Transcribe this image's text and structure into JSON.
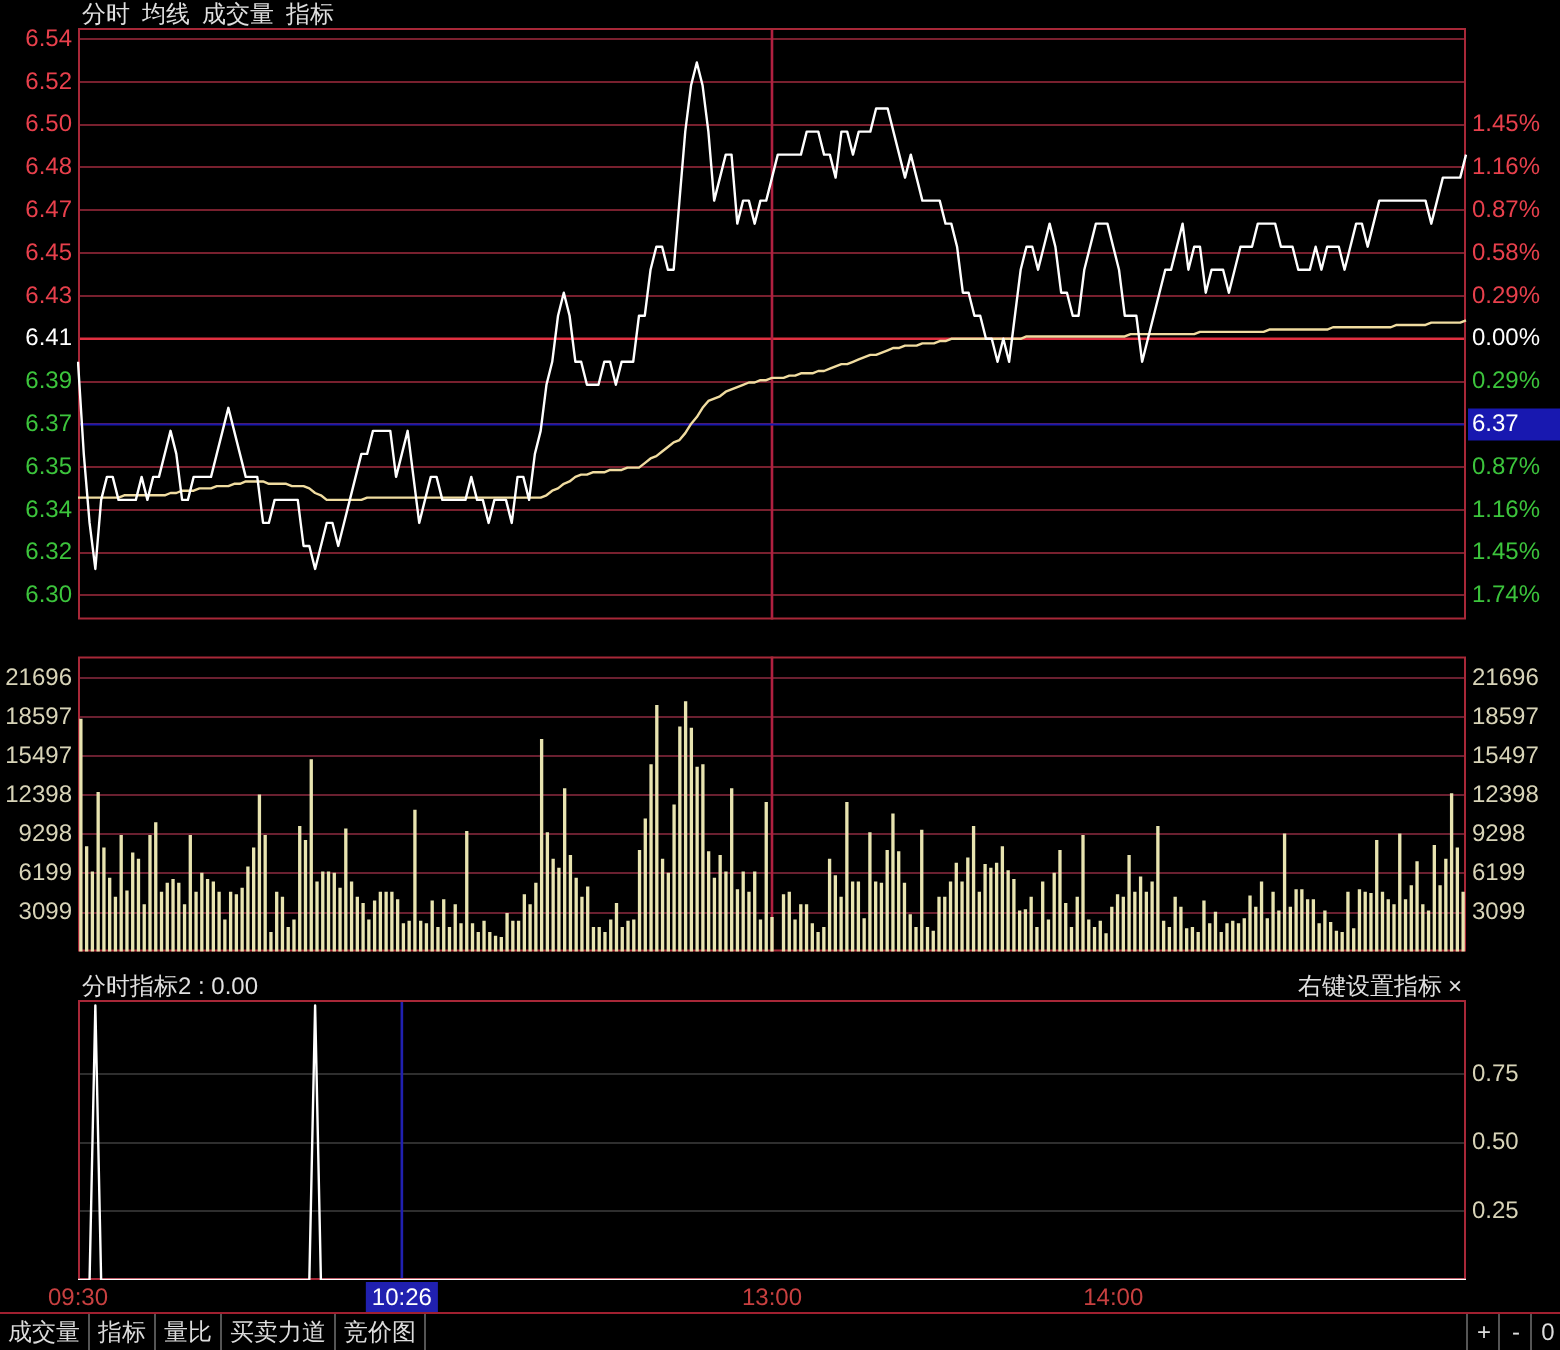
{
  "chart_data": [
    {
      "type": "line",
      "annotations": [
        "分时",
        "均线",
        "成交量",
        "指标"
      ],
      "categories": [
        "09:30",
        null,
        null,
        null,
        null,
        null,
        null,
        null,
        null,
        null,
        null,
        null,
        null,
        null,
        null,
        null,
        null,
        null,
        null,
        null,
        null,
        null,
        null,
        null,
        null,
        null,
        null,
        null,
        null,
        null,
        null,
        null,
        null,
        null,
        null,
        null,
        null,
        null,
        null,
        null,
        null,
        null,
        null,
        null,
        null,
        null,
        null,
        null,
        null,
        null,
        null,
        null,
        null,
        null,
        null,
        null,
        "10:26",
        null,
        null,
        null,
        null,
        null,
        null,
        null,
        null,
        null,
        null,
        null,
        null,
        null,
        null,
        null,
        null,
        null,
        null,
        null,
        null,
        null,
        null,
        null,
        null,
        null,
        null,
        null,
        null,
        null,
        null,
        null,
        null,
        null,
        null,
        null,
        null,
        null,
        null,
        null,
        null,
        null,
        null,
        null,
        null,
        null,
        null,
        null,
        null,
        null,
        null,
        null,
        null,
        null,
        null,
        null,
        null,
        null,
        null,
        null,
        null,
        null,
        null,
        null,
        "13:00",
        null,
        null,
        null,
        null,
        null,
        null,
        null,
        null,
        null,
        null,
        null,
        null,
        null,
        null,
        null,
        null,
        null,
        null,
        null,
        null,
        null,
        null,
        null,
        null,
        null,
        null,
        null,
        null,
        null,
        null,
        null,
        null,
        null,
        null,
        null,
        null,
        null,
        null,
        null,
        null,
        null,
        null,
        null,
        null,
        null,
        null,
        null,
        null,
        null,
        null,
        null,
        null,
        null,
        null,
        null,
        null,
        null,
        null,
        "14:00",
        null,
        null,
        null,
        null,
        null,
        null,
        null,
        null,
        null,
        null,
        null,
        null,
        null,
        null,
        null,
        null,
        null,
        null,
        null,
        null,
        null,
        null,
        null,
        null,
        null,
        null,
        null,
        null,
        null,
        null,
        null,
        null,
        null,
        null,
        null,
        null,
        null,
        null,
        null,
        null,
        null,
        null,
        null,
        null,
        null,
        null,
        null,
        null,
        null,
        null,
        null,
        null,
        null,
        null,
        null,
        null,
        null,
        null,
        null,
        null,
        null
      ],
      "ylim": [
        6.288,
        6.545
      ],
      "yticks": [
        {
          "value": 6.5401,
          "label": "6.54"
        },
        {
          "value": 6.5215,
          "label": "6.52"
        },
        {
          "value": 6.503,
          "label": "6.50"
        },
        {
          "value": 6.4844,
          "label": "6.48"
        },
        {
          "value": 6.4658,
          "label": "6.47"
        },
        {
          "value": 6.4472,
          "label": "6.45"
        },
        {
          "value": 6.4286,
          "label": "6.43"
        },
        {
          "value": 6.41,
          "label": "6.41"
        },
        {
          "value": 6.3914,
          "label": "6.39"
        },
        {
          "value": 6.3728,
          "label": "6.37"
        },
        {
          "value": 6.3542,
          "label": "6.35"
        },
        {
          "value": 6.3356,
          "label": "6.34"
        },
        {
          "value": 6.317,
          "label": "6.32"
        },
        {
          "value": 6.2985,
          "label": "6.30"
        }
      ],
      "y2lim": [
        -1.903,
        2.106
      ],
      "y2ticks": [
        {
          "value": 1.45,
          "label": "1.45%"
        },
        {
          "value": 1.16,
          "label": "1.16%"
        },
        {
          "value": 0.87,
          "label": "0.87%"
        },
        {
          "value": 0.58,
          "label": "0.58%"
        },
        {
          "value": 0.29,
          "label": "0.29%"
        },
        {
          "value": 0,
          "label": "0.00%"
        },
        {
          "value": -0.29,
          "label": "0.29%"
        },
        {
          "value": -0.87,
          "label": "0.87%"
        },
        {
          "value": -1.16,
          "label": "1.16%"
        },
        {
          "value": -1.45,
          "label": "1.45%"
        },
        {
          "value": -1.74,
          "label": "1.74%"
        }
      ],
      "tick_labels": "y",
      "grid": "y",
      "legend": false,
      "marker": "none",
      "ref_lines": [
        {
          "axis": "y",
          "value": 6.41,
          "color": "#e03040"
        },
        {
          "axis": "x",
          "value": "13:00",
          "color": "#b02040"
        },
        {
          "axis": "y",
          "value": 6.3728,
          "label": "6.37",
          "color": "#1818b0"
        }
      ],
      "series": [
        {
          "color": "#ffffff",
          "values": [
            6.4,
            6.36,
            6.33,
            6.31,
            6.34,
            6.35,
            6.35,
            6.34,
            6.34,
            6.34,
            6.34,
            6.35,
            6.34,
            6.35,
            6.35,
            6.36,
            6.37,
            6.36,
            6.34,
            6.34,
            6.35,
            6.35,
            6.35,
            6.35,
            6.36,
            6.37,
            6.38,
            6.37,
            6.36,
            6.35,
            6.35,
            6.35,
            6.33,
            6.33,
            6.34,
            6.34,
            6.34,
            6.34,
            6.34,
            6.32,
            6.32,
            6.31,
            6.32,
            6.33,
            6.33,
            6.32,
            6.33,
            6.34,
            6.35,
            6.36,
            6.36,
            6.37,
            6.37,
            6.37,
            6.37,
            6.35,
            6.36,
            6.37,
            6.35,
            6.33,
            6.34,
            6.35,
            6.35,
            6.34,
            6.34,
            6.34,
            6.34,
            6.34,
            6.35,
            6.34,
            6.34,
            6.33,
            6.34,
            6.34,
            6.34,
            6.33,
            6.35,
            6.35,
            6.34,
            6.36,
            6.37,
            6.39,
            6.4,
            6.42,
            6.43,
            6.42,
            6.4,
            6.4,
            6.39,
            6.39,
            6.39,
            6.4,
            6.4,
            6.39,
            6.4,
            6.4,
            6.4,
            6.42,
            6.42,
            6.44,
            6.45,
            6.45,
            6.44,
            6.44,
            6.47,
            6.5,
            6.52,
            6.53,
            6.52,
            6.5,
            6.47,
            6.48,
            6.49,
            6.49,
            6.46,
            6.47,
            6.47,
            6.46,
            6.47,
            6.47,
            6.48,
            6.49,
            6.49,
            6.49,
            6.49,
            6.49,
            6.5,
            6.5,
            6.5,
            6.49,
            6.49,
            6.48,
            6.5,
            6.5,
            6.49,
            6.5,
            6.5,
            6.5,
            6.51,
            6.51,
            6.51,
            6.5,
            6.49,
            6.48,
            6.49,
            6.48,
            6.47,
            6.47,
            6.47,
            6.47,
            6.46,
            6.46,
            6.45,
            6.43,
            6.43,
            6.42,
            6.42,
            6.41,
            6.41,
            6.4,
            6.41,
            6.4,
            6.42,
            6.44,
            6.45,
            6.45,
            6.44,
            6.45,
            6.46,
            6.45,
            6.43,
            6.43,
            6.42,
            6.42,
            6.44,
            6.45,
            6.46,
            6.46,
            6.46,
            6.45,
            6.44,
            6.42,
            6.42,
            6.42,
            6.4,
            6.41,
            6.42,
            6.43,
            6.44,
            6.44,
            6.45,
            6.46,
            6.44,
            6.45,
            6.45,
            6.43,
            6.44,
            6.44,
            6.44,
            6.43,
            6.44,
            6.45,
            6.45,
            6.45,
            6.46,
            6.46,
            6.46,
            6.46,
            6.45,
            6.45,
            6.45,
            6.44,
            6.44,
            6.44,
            6.45,
            6.44,
            6.45,
            6.45,
            6.45,
            6.44,
            6.45,
            6.46,
            6.46,
            6.45,
            6.46,
            6.47,
            6.47,
            6.47,
            6.47,
            6.47,
            6.47,
            6.47,
            6.47,
            6.47,
            6.46,
            6.47,
            6.48,
            6.48,
            6.48,
            6.48,
            6.49
          ]
        },
        {
          "color": "#f0dca0",
          "values": [
            6.341,
            6.341,
            6.341,
            6.341,
            6.341,
            6.341,
            6.341,
            6.341,
            6.342,
            6.342,
            6.342,
            6.342,
            6.342,
            6.342,
            6.342,
            6.342,
            6.343,
            6.343,
            6.344,
            6.344,
            6.344,
            6.345,
            6.345,
            6.345,
            6.346,
            6.346,
            6.346,
            6.347,
            6.347,
            6.348,
            6.348,
            6.348,
            6.348,
            6.347,
            6.347,
            6.347,
            6.347,
            6.346,
            6.346,
            6.346,
            6.345,
            6.343,
            6.342,
            6.34,
            6.34,
            6.34,
            6.34,
            6.34,
            6.34,
            6.34,
            6.341,
            6.341,
            6.341,
            6.341,
            6.341,
            6.341,
            6.341,
            6.341,
            6.341,
            6.341,
            6.341,
            6.341,
            6.341,
            6.341,
            6.341,
            6.341,
            6.341,
            6.341,
            6.341,
            6.341,
            6.341,
            6.341,
            6.341,
            6.341,
            6.341,
            6.341,
            6.341,
            6.341,
            6.341,
            6.341,
            6.341,
            6.342,
            6.344,
            6.345,
            6.347,
            6.348,
            6.35,
            6.351,
            6.351,
            6.352,
            6.352,
            6.352,
            6.353,
            6.353,
            6.353,
            6.354,
            6.354,
            6.354,
            6.356,
            6.358,
            6.359,
            6.361,
            6.363,
            6.365,
            6.366,
            6.369,
            6.373,
            6.376,
            6.38,
            6.383,
            6.384,
            6.385,
            6.387,
            6.388,
            6.389,
            6.39,
            6.391,
            6.391,
            6.392,
            6.392,
            6.393,
            6.393,
            6.393,
            6.394,
            6.394,
            6.395,
            6.395,
            6.395,
            6.396,
            6.396,
            6.397,
            6.398,
            6.399,
            6.399,
            6.4,
            6.401,
            6.402,
            6.403,
            6.403,
            6.404,
            6.405,
            6.406,
            6.406,
            6.407,
            6.407,
            6.407,
            6.408,
            6.408,
            6.408,
            6.409,
            6.409,
            6.41,
            6.41,
            6.41,
            6.41,
            6.41,
            6.41,
            6.41,
            6.41,
            6.41,
            6.41,
            6.41,
            6.41,
            6.41,
            6.411,
            6.411,
            6.411,
            6.411,
            6.411,
            6.411,
            6.411,
            6.411,
            6.411,
            6.411,
            6.411,
            6.411,
            6.411,
            6.411,
            6.411,
            6.411,
            6.411,
            6.411,
            6.412,
            6.412,
            6.412,
            6.412,
            6.412,
            6.412,
            6.412,
            6.412,
            6.412,
            6.412,
            6.412,
            6.412,
            6.413,
            6.413,
            6.413,
            6.413,
            6.413,
            6.413,
            6.413,
            6.413,
            6.413,
            6.413,
            6.413,
            6.413,
            6.414,
            6.414,
            6.414,
            6.414,
            6.414,
            6.414,
            6.414,
            6.414,
            6.414,
            6.414,
            6.414,
            6.415,
            6.415,
            6.415,
            6.415,
            6.415,
            6.415,
            6.415,
            6.415,
            6.415,
            6.415,
            6.415,
            6.416,
            6.416,
            6.416,
            6.416,
            6.416,
            6.416,
            6.417,
            6.417,
            6.417,
            6.417,
            6.417,
            6.417,
            6.418
          ]
        }
      ]
    },
    {
      "type": "bar",
      "categories": [
        "09:30",
        null,
        null,
        null,
        null,
        null,
        null,
        null,
        null,
        null,
        null,
        null,
        null,
        null,
        null,
        null,
        null,
        null,
        null,
        null,
        null,
        null,
        null,
        null,
        null,
        null,
        null,
        null,
        null,
        null,
        null,
        null,
        null,
        null,
        null,
        null,
        null,
        null,
        null,
        null,
        null,
        null,
        null,
        null,
        null,
        null,
        null,
        null,
        null,
        null,
        null,
        null,
        null,
        null,
        null,
        null,
        "10:26",
        null,
        null,
        null,
        null,
        null,
        null,
        null,
        null,
        null,
        null,
        null,
        null,
        null,
        null,
        null,
        null,
        null,
        null,
        null,
        null,
        null,
        null,
        null,
        null,
        null,
        null,
        null,
        null,
        null,
        null,
        null,
        null,
        null,
        null,
        null,
        null,
        null,
        null,
        null,
        null,
        null,
        null,
        null,
        null,
        null,
        null,
        null,
        null,
        null,
        null,
        null,
        null,
        null,
        null,
        null,
        null,
        null,
        null,
        null,
        null,
        null,
        null,
        null,
        "13:00",
        null,
        null,
        null,
        null,
        null,
        null,
        null,
        null,
        null,
        null,
        null,
        null,
        null,
        null,
        null,
        null,
        null,
        null,
        null,
        null,
        null,
        null,
        null,
        null,
        null,
        null,
        null,
        null,
        null,
        null,
        null,
        null,
        null,
        null,
        null,
        null,
        null,
        null,
        null,
        null,
        null,
        null,
        null,
        null,
        null,
        null,
        null,
        null,
        null,
        null,
        null,
        null,
        null,
        null,
        null,
        null,
        null,
        null,
        "14:00",
        null,
        null,
        null,
        null,
        null,
        null,
        null,
        null,
        null,
        null,
        null,
        null,
        null,
        null,
        null,
        null,
        null,
        null,
        null,
        null,
        null,
        null,
        null,
        null,
        null,
        null,
        null,
        null,
        null,
        null,
        null,
        null,
        null,
        null,
        null,
        null,
        null,
        null,
        null,
        null,
        null,
        null,
        null,
        null,
        null,
        null,
        null,
        null,
        null,
        null,
        null,
        null,
        null,
        null,
        null,
        null,
        null,
        null,
        null,
        null,
        null
      ],
      "ylim": [
        0,
        23400
      ],
      "yticks": [
        3099,
        6199,
        9298,
        12398,
        15497,
        18597,
        21696
      ],
      "y2lim": [
        0,
        23400
      ],
      "y2ticks": [
        3099,
        6199,
        9298,
        12398,
        15497,
        18597,
        21696
      ],
      "tick_labels": "y",
      "grid": "y",
      "legend": false,
      "ref_lines": [
        {
          "axis": "x",
          "value": "13:00",
          "color": "#b02040"
        }
      ],
      "series": [
        {
          "color": "#e8e4b0",
          "values": [
            18400,
            8300,
            6300,
            12600,
            8200,
            5800,
            4300,
            9200,
            4800,
            7800,
            7300,
            3700,
            9200,
            10200,
            4700,
            5400,
            5700,
            5400,
            3700,
            9200,
            4700,
            6200,
            5700,
            5500,
            4700,
            2500,
            4700,
            4500,
            5000,
            6700,
            8200,
            12400,
            9200,
            1500,
            4700,
            4300,
            1900,
            2500,
            9900,
            8800,
            15200,
            5500,
            6300,
            6300,
            6200,
            5000,
            9700,
            5500,
            4300,
            3800,
            2500,
            4000,
            4700,
            4700,
            4700,
            4100,
            2200,
            2400,
            11200,
            2400,
            2200,
            4000,
            1900,
            4100,
            1900,
            3700,
            2200,
            9500,
            2200,
            1500,
            2400,
            1500,
            1200,
            1100,
            3000,
            2400,
            2400,
            4500,
            3700,
            5400,
            16800,
            9400,
            7300,
            6600,
            12900,
            7600,
            5800,
            4300,
            5100,
            1900,
            1900,
            1500,
            2500,
            3800,
            1900,
            2400,
            2500,
            8000,
            10500,
            14800,
            19500,
            7300,
            6200,
            11600,
            17800,
            19800,
            17700,
            14600,
            14800,
            7900,
            5800,
            7600,
            6300,
            12900,
            4900,
            6300,
            4700,
            6300,
            2500,
            11800,
            2700,
            null,
            4500,
            4700,
            2500,
            3700,
            3700,
            2200,
            1500,
            1900,
            7300,
            6000,
            4300,
            11800,
            5500,
            5500,
            2600,
            9400,
            5500,
            5400,
            8000,
            10900,
            7900,
            5400,
            2900,
            1900,
            9600,
            1900,
            1600,
            4300,
            4300,
            5500,
            7000,
            5500,
            7400,
            9900,
            4700,
            6900,
            6600,
            7000,
            8300,
            6400,
            5700,
            3200,
            3300,
            4300,
            1900,
            5500,
            2500,
            6200,
            8000,
            3800,
            1900,
            4300,
            9200,
            2500,
            1900,
            2400,
            1400,
            3500,
            4500,
            4300,
            7600,
            4700,
            5900,
            4700,
            5500,
            9900,
            2400,
            1900,
            4300,
            3500,
            1800,
            1900,
            1500,
            4000,
            2200,
            3100,
            1500,
            2200,
            2400,
            2200,
            2600,
            4400,
            3500,
            5500,
            2600,
            4700,
            3200,
            9300,
            3500,
            4900,
            4900,
            4100,
            4100,
            2200,
            3200,
            2300,
            1600,
            1500,
            4700,
            1800,
            4900,
            4700,
            4600,
            8800,
            4700,
            4100,
            3700,
            9300,
            4100,
            5200,
            7100,
            3700,
            3200,
            8400,
            5200,
            7300,
            12500,
            8200,
            4700
          ]
        }
      ]
    },
    {
      "type": "line",
      "title": "分时指标2 : 0.00",
      "annotations": [
        "右键设置指标",
        "×",
        "成交量",
        "指标",
        "量比",
        "买卖力道",
        "竞价图",
        "+",
        "-",
        "0"
      ],
      "categories": [
        "09:30",
        null,
        null,
        null,
        null,
        null,
        null,
        null,
        null,
        null,
        null,
        null,
        null,
        null,
        null,
        null,
        null,
        null,
        null,
        null,
        null,
        null,
        null,
        null,
        null,
        null,
        null,
        null,
        null,
        null,
        null,
        null,
        null,
        null,
        null,
        null,
        null,
        null,
        null,
        null,
        null,
        null,
        null,
        null,
        null,
        null,
        null,
        null,
        null,
        null,
        null,
        null,
        null,
        null,
        null,
        null,
        "10:26",
        null,
        null,
        null,
        null,
        null,
        null,
        null,
        null,
        null,
        null,
        null,
        null,
        null,
        null,
        null,
        null,
        null,
        null,
        null,
        null,
        null,
        null,
        null,
        null,
        null,
        null,
        null,
        null,
        null,
        null,
        null,
        null,
        null,
        null,
        null,
        null,
        null,
        null,
        null,
        null,
        null,
        null,
        null,
        null,
        null,
        null,
        null,
        null,
        null,
        null,
        null,
        null,
        null,
        null,
        null,
        null,
        null,
        null,
        null,
        null,
        null,
        null,
        null,
        "13:00",
        null,
        null,
        null,
        null,
        null,
        null,
        null,
        null,
        null,
        null,
        null,
        null,
        null,
        null,
        null,
        null,
        null,
        null,
        null,
        null,
        null,
        null,
        null,
        null,
        null,
        null,
        null,
        null,
        null,
        null,
        null,
        null,
        null,
        null,
        null,
        null,
        null,
        null,
        null,
        null,
        null,
        null,
        null,
        null,
        null,
        null,
        null,
        null,
        null,
        null,
        null,
        null,
        null,
        null,
        null,
        null,
        null,
        null,
        "14:00",
        null,
        null,
        null,
        null,
        null,
        null,
        null,
        null,
        null,
        null,
        null,
        null,
        null,
        null,
        null,
        null,
        null,
        null,
        null,
        null,
        null,
        null,
        null,
        null,
        null,
        null,
        null,
        null,
        null,
        null,
        null,
        null,
        null,
        null,
        null,
        null,
        null,
        null,
        null,
        null,
        null,
        null,
        null,
        null,
        null,
        null,
        null,
        null,
        null,
        null,
        null,
        null,
        null,
        null,
        null,
        null,
        null,
        null,
        null,
        null,
        null
      ],
      "y2lim": [
        0,
        1.02
      ],
      "y2ticks": [
        0.25,
        {
          "value": 0.5,
          "label": "0.50"
        },
        0.75
      ],
      "grid": "y",
      "legend": false,
      "marker": "none",
      "ref_lines": [
        {
          "axis": "x",
          "value": "10:26",
          "color": "#2020b0"
        }
      ],
      "series": [
        {
          "color": "#ffffff",
          "axis": "y2",
          "values": [
            0,
            0,
            0,
            1,
            0,
            0,
            0,
            0,
            0,
            0,
            0,
            0,
            0,
            0,
            0,
            0,
            0,
            0,
            0,
            0,
            0,
            0,
            0,
            0,
            0,
            0,
            0,
            0,
            0,
            0,
            0,
            0,
            0,
            0,
            0,
            0,
            0,
            0,
            0,
            0,
            0,
            1,
            0,
            0,
            0,
            0,
            0,
            0,
            0,
            0,
            0,
            0,
            0,
            0,
            0,
            0,
            0,
            0,
            0,
            0,
            0,
            0,
            0,
            0,
            0,
            0,
            0,
            0,
            0,
            0,
            0,
            0,
            0,
            0,
            0,
            0,
            0,
            0,
            0,
            0,
            0,
            0,
            0,
            0,
            0,
            0,
            0,
            0,
            0,
            0,
            0,
            0,
            0,
            0,
            0,
            0,
            0,
            0,
            0,
            0,
            0,
            0,
            0,
            0,
            0,
            0,
            0,
            0,
            0,
            0,
            0,
            0,
            0,
            0,
            0,
            0,
            0,
            0,
            0,
            0,
            0,
            0,
            0,
            0,
            0,
            0,
            0,
            0,
            0,
            0,
            0,
            0,
            0,
            0,
            0,
            0,
            0,
            0,
            0,
            0,
            0,
            0,
            0,
            0,
            0,
            0,
            0,
            0,
            0,
            0,
            0,
            0,
            0,
            0,
            0,
            0,
            0,
            0,
            0,
            0,
            0,
            0,
            0,
            0,
            0,
            0,
            0,
            0,
            0,
            0,
            0,
            0,
            0,
            0,
            0,
            0,
            0,
            0,
            0,
            0,
            0,
            0,
            0,
            0,
            0,
            0,
            0,
            0,
            0,
            0,
            0,
            0,
            0,
            0,
            0,
            0,
            0,
            0,
            0,
            0,
            0,
            0,
            0,
            0,
            0,
            0,
            0,
            0,
            0,
            0,
            0,
            0,
            0,
            0,
            0,
            0,
            0,
            0,
            0,
            0,
            0,
            0,
            0,
            0,
            0,
            0,
            0,
            0,
            0,
            0,
            0,
            0,
            0,
            0,
            0,
            0,
            0,
            0,
            0,
            0,
            0
          ]
        }
      ]
    }
  ]
}
